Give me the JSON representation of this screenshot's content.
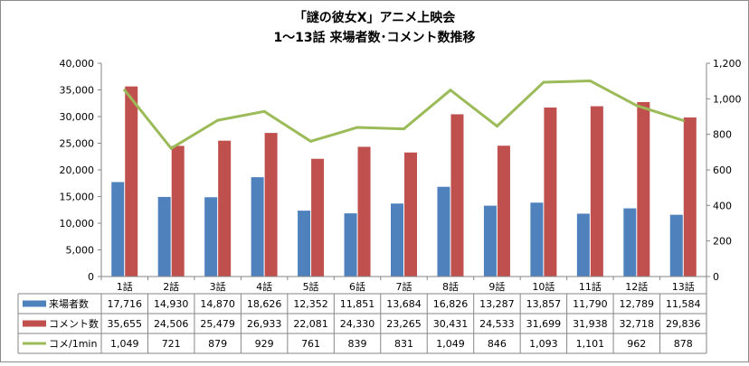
{
  "chart_data": {
    "type": "bar+line",
    "title": [
      "「謎の彼女X」アニメ上映会",
      "1～13話 来場者数･コメント数推移"
    ],
    "categories": [
      "1話",
      "2話",
      "3話",
      "4話",
      "5話",
      "6話",
      "7話",
      "8話",
      "9話",
      "10話",
      "11話",
      "12話",
      "13話"
    ],
    "series": [
      {
        "name": "来場者数",
        "type": "bar",
        "axis": "left",
        "color": "#4f81bd",
        "values": [
          17716,
          14930,
          14870,
          18626,
          12352,
          11851,
          13684,
          16826,
          13287,
          13857,
          11790,
          12789,
          11584
        ],
        "labels": [
          "17,716",
          "14,930",
          "14,870",
          "18,626",
          "12,352",
          "11,851",
          "13,684",
          "16,826",
          "13,287",
          "13,857",
          "11,790",
          "12,789",
          "11,584"
        ]
      },
      {
        "name": "コメント数",
        "type": "bar",
        "axis": "left",
        "color": "#c0504d",
        "values": [
          35655,
          24506,
          25479,
          26933,
          22081,
          24330,
          23265,
          30431,
          24533,
          31699,
          31938,
          32718,
          29836
        ],
        "labels": [
          "35,655",
          "24,506",
          "25,479",
          "26,933",
          "22,081",
          "24,330",
          "23,265",
          "30,431",
          "24,533",
          "31,699",
          "31,938",
          "32,718",
          "29,836"
        ]
      },
      {
        "name": "コメ/1min",
        "type": "line",
        "axis": "right",
        "color": "#9bbb59",
        "values": [
          1049,
          721,
          879,
          929,
          761,
          839,
          831,
          1049,
          846,
          1093,
          1101,
          962,
          878
        ],
        "labels": [
          "1,049",
          "721",
          "879",
          "929",
          "761",
          "839",
          "831",
          "1,049",
          "846",
          "1,093",
          "1,101",
          "962",
          "878"
        ]
      }
    ],
    "left_axis": {
      "ylim": [
        0,
        40000
      ],
      "ticks": [
        "0",
        "5,000",
        "10,000",
        "15,000",
        "20,000",
        "25,000",
        "30,000",
        "35,000",
        "40,000"
      ]
    },
    "right_axis": {
      "ylim": [
        0,
        1200
      ],
      "ticks": [
        "0",
        "200",
        "400",
        "600",
        "800",
        "1,000",
        "1,200"
      ]
    },
    "grid": false,
    "legend": "data-table"
  }
}
